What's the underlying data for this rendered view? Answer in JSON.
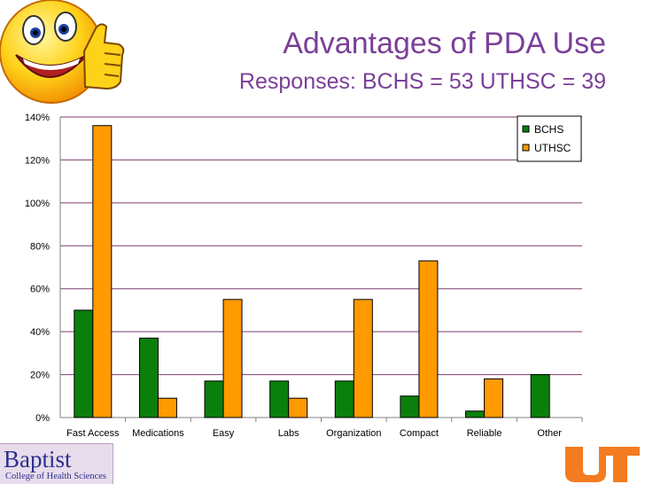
{
  "slide": {
    "title": "Advantages of PDA Use",
    "subtitle": "Responses: BCHS = 53 UTHSC = 39"
  },
  "logos": {
    "baptist_big": "Baptist",
    "baptist_small": "College of Health Sciences"
  },
  "colors": {
    "title": "#7b3f98",
    "bchs": "#0b7f0b",
    "uthsc": "#ff9a00",
    "gridline": "#7b3f6f",
    "ut_orange": "#f47b20"
  },
  "icons": [
    "smiley-thumbs-up-icon",
    "ut-logo-icon"
  ],
  "chart_data": {
    "type": "bar",
    "categories": [
      "Fast Access",
      "Medications",
      "Easy",
      "Labs",
      "Organization",
      "Compact",
      "Reliable",
      "Other"
    ],
    "series": [
      {
        "name": "BCHS",
        "values": [
          50,
          37,
          17,
          17,
          17,
          10,
          3,
          20
        ]
      },
      {
        "name": "UTHSC",
        "values": [
          136,
          9,
          55,
          9,
          55,
          73,
          18,
          0
        ]
      }
    ],
    "ylim": [
      0,
      140
    ],
    "yticks": [
      "0%",
      "20%",
      "40%",
      "60%",
      "80%",
      "100%",
      "120%",
      "140%"
    ],
    "ytick_values": [
      0,
      20,
      40,
      60,
      80,
      100,
      120,
      140
    ],
    "grid": true,
    "legend": "top-right"
  }
}
